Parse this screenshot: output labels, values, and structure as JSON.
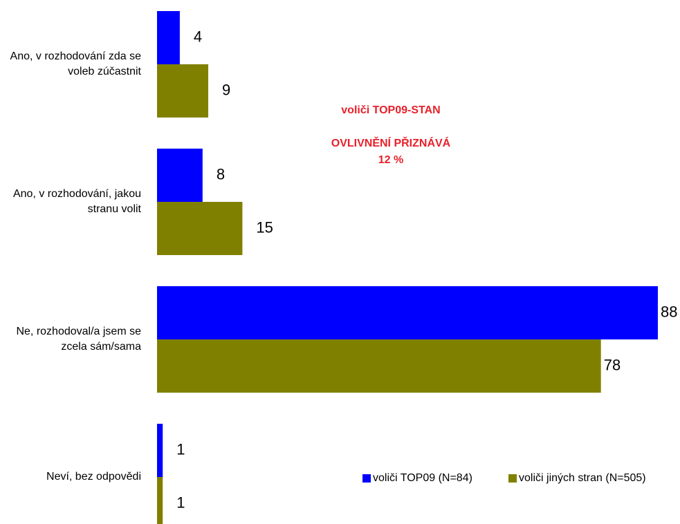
{
  "chart_data": {
    "type": "barh",
    "categories": [
      "Ano, v rozhodování zda se voleb zúčastnit",
      "Ano, v rozhodování, jakou stranu volit",
      "Ne, rozhodoval/a jsem se zcela sám/sama",
      "Neví, bez odpovědi"
    ],
    "series": [
      {
        "name": "voliči TOP09 (N=84)",
        "color": "#0000ff",
        "values": [
          4,
          8,
          88,
          1
        ]
      },
      {
        "name": "voliči jiných stran (N=505)",
        "color": "#808000",
        "values": [
          9,
          15,
          78,
          1
        ]
      }
    ],
    "xlim": [
      0,
      92
    ],
    "legend": "lower right",
    "annotations": [
      "voliči TOP09-STAN",
      "OVLIVNĚNÍ PŘIZNÁVÁ",
      "12 %"
    ],
    "annotation_color": "#e8202a"
  }
}
